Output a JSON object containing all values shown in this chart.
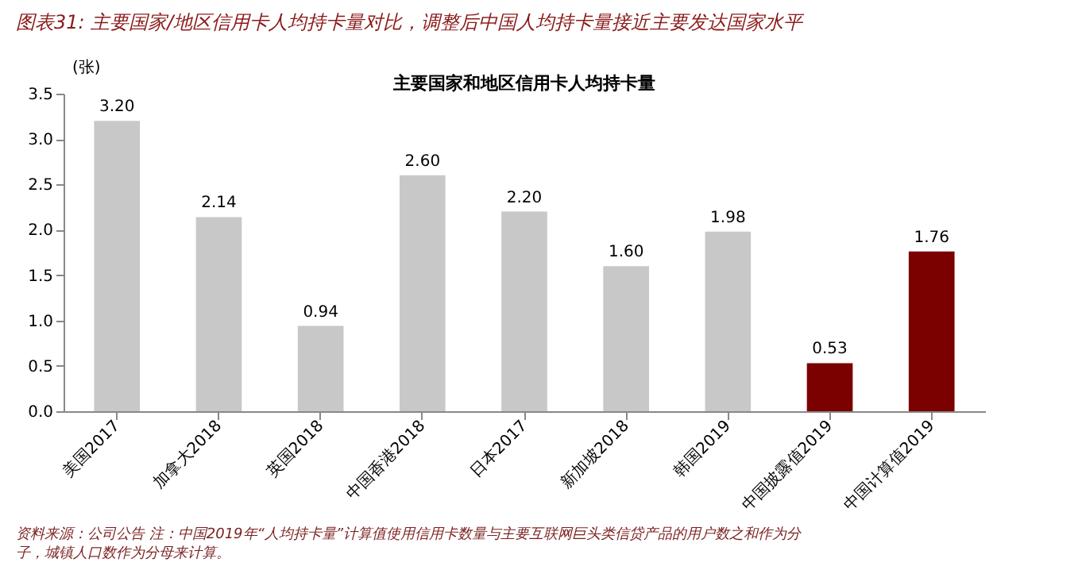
{
  "chart_data": {
    "type": "bar",
    "title": "图表31: 主要国家/地区信用卡人均持卡量对比，调整后中国人均持卡量接近主要发达国家水平",
    "subtitle": "主要国家和地区信用卡人均持卡量",
    "ylabel": "(张)",
    "categories": [
      "美国2017",
      "加拿大2018",
      "英国2018",
      "中国香港2018",
      "日本2017",
      "新加坡2018",
      "韩国2019",
      "中国披露值2019",
      "中国计算值2019"
    ],
    "values": [
      3.2,
      2.14,
      0.94,
      2.6,
      2.2,
      1.6,
      1.98,
      0.53,
      1.76
    ],
    "value_labels": [
      "3.20",
      "2.14",
      "0.94",
      "2.60",
      "2.20",
      "1.60",
      "1.98",
      "0.53",
      "1.76"
    ],
    "colors": [
      "#c8c8c8",
      "#c8c8c8",
      "#c8c8c8",
      "#c8c8c8",
      "#c8c8c8",
      "#c8c8c8",
      "#c8c8c8",
      "#7b0000",
      "#7b0000"
    ],
    "ylim": [
      0,
      3.5
    ],
    "yticks": [
      {
        "value": 0,
        "label": "0.0"
      },
      {
        "value": 0.5,
        "label": "0.5"
      },
      {
        "value": 1,
        "label": "1.0"
      },
      {
        "value": 1.5,
        "label": "1.5"
      },
      {
        "value": 2,
        "label": "2.0"
      },
      {
        "value": 2.5,
        "label": "2.5"
      },
      {
        "value": 3,
        "label": "3.0"
      },
      {
        "value": 3.5,
        "label": "3.5"
      }
    ],
    "grid": false,
    "annotations": [
      "资料来源：公司公告 注：中国2019年“人均持卡量”计算值使用信用卡数量与主要互联网巨头类信贷产品的用户数之和作为分",
      "子，城镇人口数作为分母来计算。"
    ]
  }
}
